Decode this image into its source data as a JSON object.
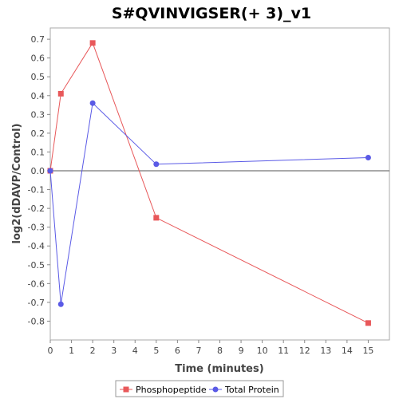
{
  "chart_data": {
    "type": "line",
    "title": "S#QVINVIGSER(+ 3)_v1",
    "xlabel": "Time (minutes)",
    "ylabel": "log2(dDAVP/Control)",
    "xlim": [
      0,
      16
    ],
    "ylim": [
      -0.9,
      0.76
    ],
    "x_ticks": [
      0,
      1,
      2,
      3,
      4,
      5,
      6,
      7,
      8,
      9,
      10,
      11,
      12,
      13,
      14,
      15
    ],
    "y_ticks": [
      -0.8,
      -0.7,
      -0.6,
      -0.5,
      -0.4,
      -0.3,
      -0.2,
      -0.1,
      0.0,
      0.1,
      0.2,
      0.3,
      0.4,
      0.5,
      0.6,
      0.7
    ],
    "grid": false,
    "zero_line": true,
    "legend_position": "bottom",
    "series": [
      {
        "name": "Phosphopeptide",
        "color": "#e8585a",
        "marker": "square",
        "x": [
          0,
          0.5,
          2,
          5,
          15
        ],
        "y": [
          0.0,
          0.41,
          0.68,
          -0.25,
          -0.81
        ]
      },
      {
        "name": "Total Protein",
        "color": "#5a5ae6",
        "marker": "circle",
        "x": [
          0,
          0.5,
          2,
          5,
          15
        ],
        "y": [
          0.0,
          -0.71,
          0.36,
          0.035,
          0.07
        ]
      }
    ]
  }
}
